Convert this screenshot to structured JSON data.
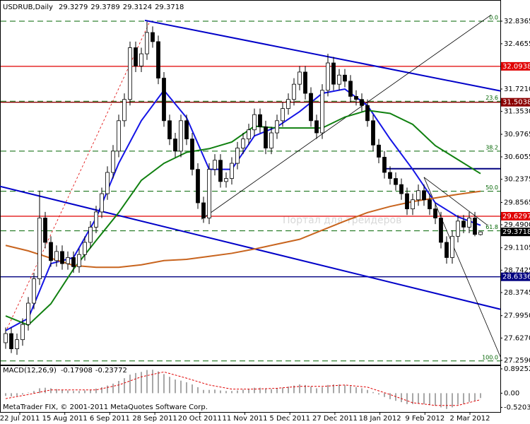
{
  "chart_data": {
    "type": "candlestick",
    "symbol": "USDRUB,Daily",
    "watermark": "Портал для трейдеров",
    "footer": "MetaTrader FIX, © 2001-2011 MetaQuotes Software Corp.",
    "ylim": [
      27.201,
      33.173
    ],
    "yticks": [
      32.8365,
      32.4655,
      {
        "value": 31.721,
        "label": "31.7210"
      },
      {
        "value": 31.353,
        "label": "31.3530"
      },
      30.9765,
      30.6055,
      30.2375,
      29.8565,
      {
        "value": 29.49,
        "label": "29.4900"
      },
      29.1105,
      28.7425,
      28.3745,
      {
        "value": 27.995,
        "label": "27.9950"
      },
      {
        "value": 27.627,
        "label": "27.6270"
      },
      {
        "value": 27.259,
        "label": "27.2590"
      }
    ],
    "xtick_labels": [
      "22 Jul 2011",
      "15 Aug 2011",
      "6 Sep 2011",
      "28 Sep 2011",
      "20 Oct 2011",
      "11 Nov 2011",
      "5 Dec 2011",
      "27 Dec 2011",
      "18 Jan 2012",
      "9 Feb 2012",
      "2 Mar 2012"
    ],
    "candles": [
      [
        27.55,
        27.8,
        27.45,
        27.7
      ],
      [
        27.7,
        27.8,
        27.38,
        27.45
      ],
      [
        27.45,
        27.7,
        27.35,
        27.6
      ],
      [
        27.6,
        27.95,
        27.5,
        27.85
      ],
      [
        27.85,
        28.3,
        27.75,
        28.2
      ],
      [
        28.2,
        28.7,
        28.1,
        28.6
      ],
      [
        28.6,
        30.05,
        28.5,
        29.6
      ],
      [
        29.6,
        29.7,
        29.1,
        29.2
      ],
      [
        29.2,
        29.3,
        28.8,
        28.9
      ],
      [
        28.9,
        29.15,
        28.8,
        29.05
      ],
      [
        29.05,
        29.15,
        28.75,
        28.85
      ],
      [
        28.85,
        29.05,
        28.75,
        28.95
      ],
      [
        28.95,
        29.05,
        28.7,
        28.8
      ],
      [
        28.8,
        29.1,
        28.7,
        29.0
      ],
      [
        29.0,
        29.3,
        28.9,
        29.2
      ],
      [
        29.2,
        29.55,
        29.1,
        29.45
      ],
      [
        29.45,
        29.8,
        29.35,
        29.7
      ],
      [
        29.7,
        30.1,
        29.6,
        30.0
      ],
      [
        30.0,
        30.45,
        29.9,
        30.35
      ],
      [
        30.35,
        30.8,
        30.25,
        30.7
      ],
      [
        30.7,
        31.3,
        30.6,
        31.2
      ],
      [
        31.2,
        31.65,
        31.1,
        31.55
      ],
      [
        31.55,
        32.5,
        31.45,
        32.4
      ],
      [
        32.4,
        32.5,
        32.0,
        32.1
      ],
      [
        32.1,
        32.4,
        32.0,
        32.3
      ],
      [
        32.3,
        32.83,
        32.2,
        32.65
      ],
      [
        32.65,
        32.75,
        32.4,
        32.5
      ],
      [
        32.5,
        32.6,
        31.8,
        31.9
      ],
      [
        31.9,
        32.0,
        31.1,
        31.2
      ],
      [
        31.2,
        31.3,
        30.8,
        30.9
      ],
      [
        30.9,
        31.0,
        30.6,
        30.7
      ],
      [
        30.7,
        31.3,
        30.6,
        31.2
      ],
      [
        31.2,
        31.3,
        30.8,
        30.9
      ],
      [
        30.9,
        31.0,
        30.3,
        30.4
      ],
      [
        30.4,
        30.5,
        29.75,
        29.85
      ],
      [
        29.85,
        29.95,
        29.52,
        29.6
      ],
      [
        29.6,
        30.5,
        29.5,
        30.4
      ],
      [
        30.4,
        30.65,
        30.3,
        30.55
      ],
      [
        30.55,
        30.65,
        30.1,
        30.2
      ],
      [
        30.2,
        30.35,
        30.1,
        30.25
      ],
      [
        30.25,
        30.6,
        30.15,
        30.5
      ],
      [
        30.5,
        30.85,
        30.4,
        30.75
      ],
      [
        30.75,
        31.0,
        30.65,
        30.9
      ],
      [
        30.9,
        31.15,
        30.8,
        31.05
      ],
      [
        31.05,
        31.4,
        30.95,
        31.3
      ],
      [
        31.3,
        31.4,
        31.0,
        31.1
      ],
      [
        31.1,
        31.2,
        30.65,
        30.75
      ],
      [
        30.75,
        31.1,
        30.65,
        31.0
      ],
      [
        31.0,
        31.3,
        30.9,
        31.2
      ],
      [
        31.2,
        31.5,
        31.1,
        31.4
      ],
      [
        31.4,
        31.65,
        31.3,
        31.55
      ],
      [
        31.55,
        31.9,
        31.45,
        31.8
      ],
      [
        31.8,
        32.1,
        31.7,
        32.0
      ],
      [
        32.0,
        32.1,
        31.55,
        31.65
      ],
      [
        31.65,
        31.75,
        31.1,
        31.2
      ],
      [
        31.2,
        31.3,
        30.9,
        31.0
      ],
      [
        31.0,
        31.8,
        30.9,
        31.7
      ],
      [
        31.7,
        32.3,
        31.6,
        32.15
      ],
      [
        32.15,
        32.25,
        31.7,
        31.8
      ],
      [
        31.8,
        32.05,
        31.7,
        31.95
      ],
      [
        31.95,
        32.05,
        31.75,
        31.85
      ],
      [
        31.85,
        31.95,
        31.5,
        31.6
      ],
      [
        31.6,
        31.7,
        31.45,
        31.55
      ],
      [
        31.55,
        31.65,
        31.35,
        31.45
      ],
      [
        31.45,
        31.55,
        31.1,
        31.2
      ],
      [
        31.2,
        31.3,
        30.7,
        30.8
      ],
      [
        30.8,
        30.9,
        30.5,
        30.6
      ],
      [
        30.6,
        30.7,
        30.25,
        30.35
      ],
      [
        30.35,
        30.45,
        30.15,
        30.25
      ],
      [
        30.25,
        30.35,
        30.05,
        30.15
      ],
      [
        30.15,
        30.25,
        29.9,
        30.0
      ],
      [
        30.0,
        30.1,
        29.65,
        29.75
      ],
      [
        29.75,
        30.0,
        29.65,
        29.9
      ],
      [
        29.9,
        30.15,
        29.8,
        30.05
      ],
      [
        30.05,
        30.15,
        29.8,
        29.9
      ],
      [
        29.9,
        30.0,
        29.65,
        29.75
      ],
      [
        29.75,
        29.85,
        29.5,
        29.6
      ],
      [
        29.6,
        29.7,
        29.1,
        29.2
      ],
      [
        29.2,
        29.3,
        28.85,
        28.95
      ],
      [
        28.95,
        29.4,
        28.85,
        29.3
      ],
      [
        29.3,
        29.65,
        29.2,
        29.55
      ],
      [
        29.55,
        29.65,
        29.35,
        29.45
      ],
      [
        29.45,
        29.7,
        29.35,
        29.6
      ],
      [
        29.6,
        29.7,
        29.3,
        29.33
      ],
      [
        29.3279,
        29.3789,
        29.3124,
        29.3718
      ]
    ],
    "moving_averages": [
      {
        "color": "#1414e6",
        "values": [
          27.75,
          27.95,
          28.85,
          28.95,
          29.6,
          30.5,
          31.2,
          31.7,
          31.25,
          30.4,
          30.4,
          30.95,
          31.1,
          31.35,
          31.65,
          31.72,
          31.45,
          30.9,
          30.4,
          29.85,
          29.62,
          29.48
        ]
      },
      {
        "color": "#108010",
        "values": [
          27.99,
          27.84,
          28.19,
          28.76,
          29.23,
          29.69,
          30.22,
          30.5,
          30.68,
          30.74,
          30.85,
          31.11,
          31.08,
          31.08,
          31.08,
          31.26,
          31.37,
          31.32,
          31.14,
          30.79,
          30.56,
          30.33
        ]
      },
      {
        "color": "#c8641e",
        "values": [
          29.15,
          29.06,
          28.94,
          28.82,
          28.79,
          28.79,
          28.83,
          28.9,
          28.92,
          28.97,
          29.02,
          29.09,
          29.17,
          29.25,
          29.4,
          29.55,
          29.69,
          29.79,
          29.87,
          29.93,
          29.99,
          30.04
        ]
      }
    ],
    "levels": [
      {
        "value": 32.0938,
        "color": "#e00000"
      },
      {
        "value": 31.5038,
        "color": "#8b0000"
      },
      {
        "value": 29.6297,
        "color": "#e00000"
      },
      {
        "value": 28.6336,
        "color": "#000080"
      }
    ],
    "current_price": 29.3718,
    "fib_levels": [
      {
        "value": 32.8365,
        "label": "0.0"
      },
      {
        "value": 31.52,
        "label": "23.6"
      },
      {
        "value": 30.7,
        "label": "38.2"
      },
      {
        "value": 30.04,
        "label": "50.0"
      },
      {
        "value": 29.39,
        "label": "61.8"
      },
      {
        "value": 27.25,
        "label": "100.0"
      }
    ],
    "fib_color": "#006400",
    "trendlines": [
      {
        "color": "#0000c8",
        "values": [
          32.85,
          31.69
        ]
      },
      {
        "color": "#0000c8",
        "values": [
          30.12,
          28.1
        ]
      },
      {
        "color": "#000000",
        "values": [
          29.58,
          32.94
        ]
      },
      {
        "color": "#000000",
        "values": [
          30.27,
          27.32
        ]
      },
      {
        "color": "#000000",
        "values": [
          30.27,
          29.48
        ]
      },
      {
        "color": "#e00000",
        "values": [
          27.78,
          32.83
        ]
      },
      {
        "color": "#000080",
        "values": [
          30.41,
          30.41
        ]
      }
    ],
    "macd": {
      "label": "MACD(12,26,9)",
      "ylim": [
        -0.69,
        0.995
      ],
      "yticks": [
        0.89252,
        {
          "value": 0,
          "label": "0.00"
        },
        -0.52038
      ],
      "hist_color": "#a8a8a8",
      "signal_color": "#e00000",
      "histogram": [
        -0.1,
        -0.12,
        -0.1,
        -0.05,
        0.02,
        0.08,
        0.18,
        0.2,
        0.18,
        0.15,
        0.12,
        0.1,
        0.08,
        0.08,
        0.1,
        0.13,
        0.17,
        0.22,
        0.28,
        0.35,
        0.45,
        0.55,
        0.68,
        0.74,
        0.78,
        0.85,
        0.86,
        0.8,
        0.7,
        0.6,
        0.5,
        0.46,
        0.4,
        0.32,
        0.22,
        0.12,
        0.12,
        0.13,
        0.1,
        0.08,
        0.08,
        0.1,
        0.13,
        0.16,
        0.2,
        0.2,
        0.16,
        0.15,
        0.17,
        0.2,
        0.24,
        0.28,
        0.32,
        0.3,
        0.24,
        0.18,
        0.22,
        0.3,
        0.32,
        0.32,
        0.3,
        0.26,
        0.22,
        0.18,
        0.12,
        0.04,
        -0.05,
        -0.14,
        -0.22,
        -0.28,
        -0.33,
        -0.4,
        -0.4,
        -0.38,
        -0.4,
        -0.43,
        -0.46,
        -0.52,
        -0.58,
        -0.52,
        -0.42,
        -0.38,
        -0.32,
        -0.28,
        -0.17908
      ],
      "signal": [
        -0.2,
        -0.05,
        0.12,
        0.12,
        0.12,
        0.3,
        0.6,
        0.78,
        0.55,
        0.3,
        0.15,
        0.15,
        0.18,
        0.25,
        0.25,
        0.3,
        0.22,
        -0.05,
        -0.35,
        -0.45,
        -0.45,
        -0.23772
      ]
    }
  }
}
